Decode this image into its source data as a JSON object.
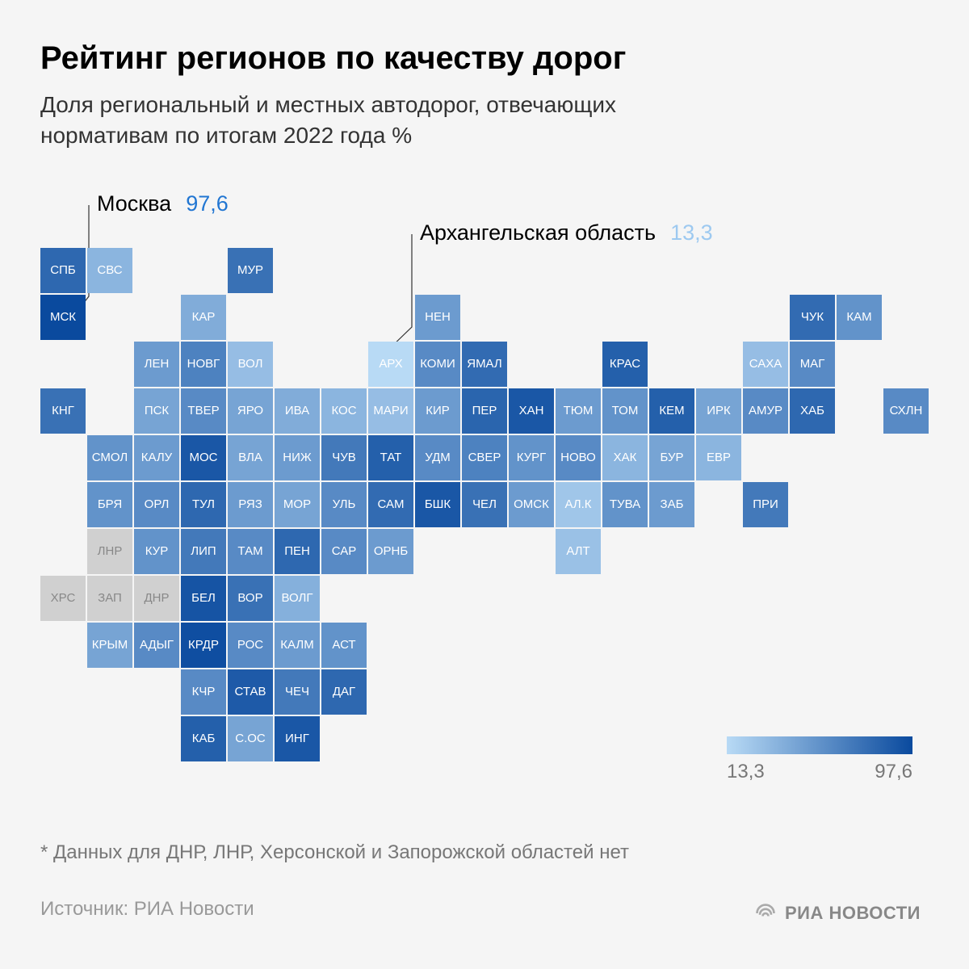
{
  "title": "Рейтинг регионов по качеству дорог",
  "subtitle": "Доля региональный и местных автодорог, отвечающих нормативам по итогам 2022 года %",
  "callouts": {
    "high": {
      "label": "Москва",
      "value": "97,6"
    },
    "low": {
      "label": "Архангельская область",
      "value": "13,3"
    }
  },
  "legend": {
    "min": "13,3",
    "max": "97,6"
  },
  "footnote": "* Данных для ДНР, ЛНР, Херсонской и Запорожской областей нет",
  "source": "Источник: РИА Новости",
  "logo_text": "РИА НОВОСТИ",
  "grid": {
    "cell_size": 56,
    "gap": 2
  },
  "color_scale": {
    "min_color": "#b8daf5",
    "max_color": "#0a4a9e",
    "nodata_color": "#d0d0d0"
  },
  "cells": [
    {
      "col": 0,
      "row": 0,
      "code": "СПБ",
      "v": 80
    },
    {
      "col": 1,
      "row": 0,
      "code": "СВС",
      "v": 35
    },
    {
      "col": 4,
      "row": 0,
      "code": "МУР",
      "v": 75
    },
    {
      "col": 0,
      "row": 1,
      "code": "МСК",
      "v": 97.6
    },
    {
      "col": 3,
      "row": 1,
      "code": "КАР",
      "v": 40
    },
    {
      "col": 8,
      "row": 1,
      "code": "НЕН",
      "v": 50
    },
    {
      "col": 16,
      "row": 1,
      "code": "ЧУК",
      "v": 78
    },
    {
      "col": 17,
      "row": 1,
      "code": "КАМ",
      "v": 55
    },
    {
      "col": 2,
      "row": 2,
      "code": "ЛЕН",
      "v": 50
    },
    {
      "col": 3,
      "row": 2,
      "code": "НОВГ",
      "v": 65
    },
    {
      "col": 4,
      "row": 2,
      "code": "ВОЛ",
      "v": 30
    },
    {
      "col": 7,
      "row": 2,
      "code": "АРХ",
      "v": 13.3
    },
    {
      "col": 8,
      "row": 2,
      "code": "КОМИ",
      "v": 60
    },
    {
      "col": 9,
      "row": 2,
      "code": "ЯМАЛ",
      "v": 78
    },
    {
      "col": 12,
      "row": 2,
      "code": "КРАС",
      "v": 85
    },
    {
      "col": 15,
      "row": 2,
      "code": "САХА",
      "v": 30
    },
    {
      "col": 16,
      "row": 2,
      "code": "МАГ",
      "v": 60
    },
    {
      "col": 0,
      "row": 3,
      "code": "КНГ",
      "v": 75
    },
    {
      "col": 2,
      "row": 3,
      "code": "ПСК",
      "v": 45
    },
    {
      "col": 3,
      "row": 3,
      "code": "ТВЕР",
      "v": 60
    },
    {
      "col": 4,
      "row": 3,
      "code": "ЯРО",
      "v": 45
    },
    {
      "col": 5,
      "row": 3,
      "code": "ИВА",
      "v": 40
    },
    {
      "col": 6,
      "row": 3,
      "code": "КОС",
      "v": 35
    },
    {
      "col": 7,
      "row": 3,
      "code": "МАРИ",
      "v": 30
    },
    {
      "col": 8,
      "row": 3,
      "code": "КИР",
      "v": 50
    },
    {
      "col": 9,
      "row": 3,
      "code": "ПЕР",
      "v": 82
    },
    {
      "col": 10,
      "row": 3,
      "code": "ХАН",
      "v": 90
    },
    {
      "col": 11,
      "row": 3,
      "code": "ТЮМ",
      "v": 50
    },
    {
      "col": 12,
      "row": 3,
      "code": "ТОМ",
      "v": 55
    },
    {
      "col": 13,
      "row": 3,
      "code": "КЕМ",
      "v": 85
    },
    {
      "col": 14,
      "row": 3,
      "code": "ИРК",
      "v": 45
    },
    {
      "col": 15,
      "row": 3,
      "code": "АМУР",
      "v": 60
    },
    {
      "col": 16,
      "row": 3,
      "code": "ХАБ",
      "v": 80
    },
    {
      "col": 18,
      "row": 3,
      "code": "СХЛН",
      "v": 60
    },
    {
      "col": 1,
      "row": 4,
      "code": "СМОЛ",
      "v": 55
    },
    {
      "col": 2,
      "row": 4,
      "code": "КАЛУ",
      "v": 50
    },
    {
      "col": 3,
      "row": 4,
      "code": "МОС",
      "v": 90
    },
    {
      "col": 4,
      "row": 4,
      "code": "ВЛА",
      "v": 45
    },
    {
      "col": 5,
      "row": 4,
      "code": "НИЖ",
      "v": 50
    },
    {
      "col": 6,
      "row": 4,
      "code": "ЧУВ",
      "v": 70
    },
    {
      "col": 7,
      "row": 4,
      "code": "ТАТ",
      "v": 85
    },
    {
      "col": 8,
      "row": 4,
      "code": "УДМ",
      "v": 60
    },
    {
      "col": 9,
      "row": 4,
      "code": "СВЕР",
      "v": 65
    },
    {
      "col": 10,
      "row": 4,
      "code": "КУРГ",
      "v": 55
    },
    {
      "col": 11,
      "row": 4,
      "code": "НОВО",
      "v": 60
    },
    {
      "col": 12,
      "row": 4,
      "code": "ХАК",
      "v": 35
    },
    {
      "col": 13,
      "row": 4,
      "code": "БУР",
      "v": 45
    },
    {
      "col": 14,
      "row": 4,
      "code": "ЕВР",
      "v": 35
    },
    {
      "col": 1,
      "row": 5,
      "code": "БРЯ",
      "v": 55
    },
    {
      "col": 2,
      "row": 5,
      "code": "ОРЛ",
      "v": 60
    },
    {
      "col": 3,
      "row": 5,
      "code": "ТУЛ",
      "v": 80
    },
    {
      "col": 4,
      "row": 5,
      "code": "РЯЗ",
      "v": 50
    },
    {
      "col": 5,
      "row": 5,
      "code": "МОР",
      "v": 45
    },
    {
      "col": 6,
      "row": 5,
      "code": "УЛЬ",
      "v": 60
    },
    {
      "col": 7,
      "row": 5,
      "code": "САМ",
      "v": 78
    },
    {
      "col": 8,
      "row": 5,
      "code": "БШК",
      "v": 90
    },
    {
      "col": 9,
      "row": 5,
      "code": "ЧЕЛ",
      "v": 75
    },
    {
      "col": 10,
      "row": 5,
      "code": "ОМСК",
      "v": 50
    },
    {
      "col": 11,
      "row": 5,
      "code": "АЛ.К",
      "v": 25
    },
    {
      "col": 12,
      "row": 5,
      "code": "ТУВА",
      "v": 55
    },
    {
      "col": 13,
      "row": 5,
      "code": "ЗАБ",
      "v": 50
    },
    {
      "col": 15,
      "row": 5,
      "code": "ПРИ",
      "v": 70
    },
    {
      "col": 1,
      "row": 6,
      "code": "ЛНР",
      "v": null
    },
    {
      "col": 2,
      "row": 6,
      "code": "КУР",
      "v": 55
    },
    {
      "col": 3,
      "row": 6,
      "code": "ЛИП",
      "v": 70
    },
    {
      "col": 4,
      "row": 6,
      "code": "ТАМ",
      "v": 60
    },
    {
      "col": 5,
      "row": 6,
      "code": "ПЕН",
      "v": 80
    },
    {
      "col": 6,
      "row": 6,
      "code": "САР",
      "v": 60
    },
    {
      "col": 7,
      "row": 6,
      "code": "ОРНБ",
      "v": 50
    },
    {
      "col": 11,
      "row": 6,
      "code": "АЛТ",
      "v": 28
    },
    {
      "col": 0,
      "row": 7,
      "code": "ХРС",
      "v": null
    },
    {
      "col": 1,
      "row": 7,
      "code": "ЗАП",
      "v": null
    },
    {
      "col": 2,
      "row": 7,
      "code": "ДНР",
      "v": null
    },
    {
      "col": 3,
      "row": 7,
      "code": "БЕЛ",
      "v": 92
    },
    {
      "col": 4,
      "row": 7,
      "code": "ВОР",
      "v": 75
    },
    {
      "col": 5,
      "row": 7,
      "code": "ВОЛГ",
      "v": 38
    },
    {
      "col": 1,
      "row": 8,
      "code": "КРЫМ",
      "v": 45
    },
    {
      "col": 2,
      "row": 8,
      "code": "АДЫГ",
      "v": 60
    },
    {
      "col": 3,
      "row": 8,
      "code": "КРДР",
      "v": 95
    },
    {
      "col": 4,
      "row": 8,
      "code": "РОС",
      "v": 60
    },
    {
      "col": 5,
      "row": 8,
      "code": "КАЛМ",
      "v": 50
    },
    {
      "col": 6,
      "row": 8,
      "code": "АСТ",
      "v": 55
    },
    {
      "col": 3,
      "row": 9,
      "code": "КЧР",
      "v": 60
    },
    {
      "col": 4,
      "row": 9,
      "code": "СТАВ",
      "v": 88
    },
    {
      "col": 5,
      "row": 9,
      "code": "ЧЕЧ",
      "v": 70
    },
    {
      "col": 6,
      "row": 9,
      "code": "ДАГ",
      "v": 80
    },
    {
      "col": 3,
      "row": 10,
      "code": "КАБ",
      "v": 85
    },
    {
      "col": 4,
      "row": 10,
      "code": "С.ОС",
      "v": 45
    },
    {
      "col": 5,
      "row": 10,
      "code": "ИНГ",
      "v": 90
    }
  ]
}
